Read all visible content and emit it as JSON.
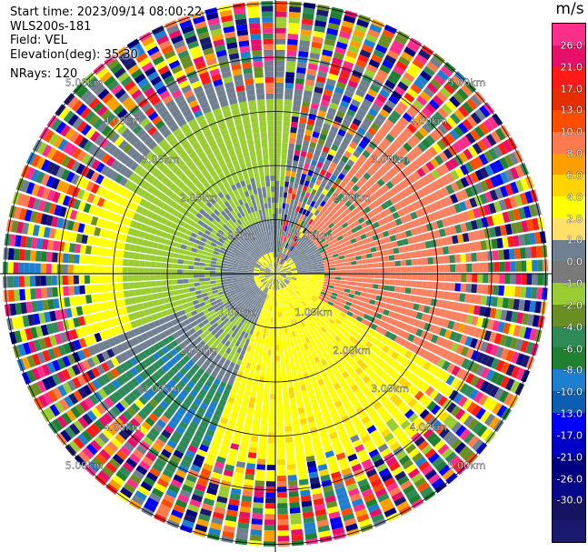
{
  "info": {
    "start_time": "Start time: 2023/09/14 08:00:22",
    "instrument": "WLS200s-181",
    "field": "Field: VEL",
    "elevation": "Elevation(deg): 35.30",
    "nrays": "NRays: 120"
  },
  "colorbar": {
    "unit": "m/s",
    "colors": [
      "#ff2d8c",
      "#e60f6a",
      "#ff1a1a",
      "#e62e00",
      "#ff4d00",
      "#ff7a4d",
      "#ff9e00",
      "#ffd400",
      "#ffff00",
      "#ffe066",
      "#708090",
      "#7a7a7a",
      "#9acd32",
      "#6b8e23",
      "#2e8b57",
      "#1e8030",
      "#1e7fd0",
      "#0c5fb0",
      "#0000ff",
      "#0000c8",
      "#000080",
      "#08088a",
      "#141460",
      "#191970"
    ],
    "labels": [
      "26.0",
      "21.0",
      "17.0",
      "13.0",
      "10.0",
      "8.0",
      "6.0",
      "4.0",
      "2.0",
      "1.0",
      "0.0",
      "-1.0",
      "-2.0",
      "-4.0",
      "-6.0",
      "-8.0",
      "-10.0",
      "-13.0",
      "-17.0",
      "-21.0",
      "-26.0",
      "-30.0"
    ]
  },
  "range_rings": [
    "1.00km",
    "2.00km",
    "3.00km",
    "4.00km",
    "5.00km"
  ]
}
